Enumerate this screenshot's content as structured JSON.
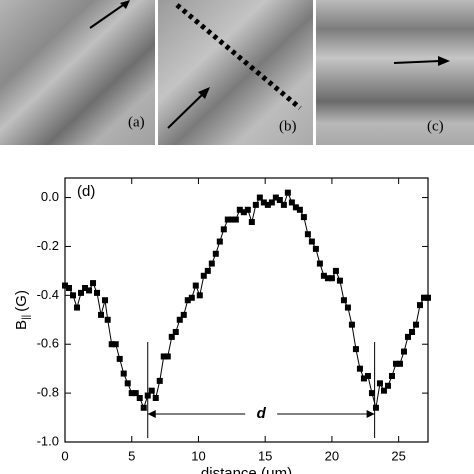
{
  "panels": [
    {
      "label": "(a)"
    },
    {
      "label": "(b)"
    },
    {
      "label": "(c)"
    }
  ],
  "chart_data": {
    "type": "line",
    "panel_label": "(d)",
    "annotation": "d",
    "x_label": "distance (μm)",
    "y_label": "B",
    "y_label_sub": "||",
    "y_label_unit": "(G)",
    "color": "#000000",
    "x": [
      0,
      0.3,
      0.6,
      0.9,
      1.2,
      1.5,
      1.8,
      2.1,
      2.4,
      2.7,
      3.0,
      3.2,
      3.5,
      3.8,
      4.1,
      4.4,
      4.7,
      5.0,
      5.3,
      5.6,
      5.9,
      6.2,
      6.5,
      6.8,
      7.1,
      7.4,
      7.7,
      8.0,
      8.3,
      8.6,
      8.9,
      9.2,
      9.5,
      9.8,
      10.1,
      10.4,
      10.7,
      11.0,
      11.3,
      11.6,
      11.9,
      12.2,
      12.5,
      12.8,
      13.1,
      13.4,
      13.7,
      14.0,
      14.3,
      14.6,
      14.9,
      15.2,
      15.5,
      15.8,
      16.1,
      16.4,
      16.7,
      17.0,
      17.3,
      17.6,
      17.9,
      18.2,
      18.5,
      18.8,
      19.1,
      19.4,
      19.7,
      20.0,
      20.3,
      20.6,
      20.9,
      21.2,
      21.5,
      21.8,
      22.1,
      22.4,
      22.7,
      23.0,
      23.3,
      23.6,
      23.9,
      24.2,
      24.5,
      24.8,
      25.1,
      25.4,
      25.7,
      26.0,
      26.3,
      26.6,
      26.9,
      27.2
    ],
    "values": [
      -0.36,
      -0.37,
      -0.4,
      -0.45,
      -0.39,
      -0.37,
      -0.38,
      -0.35,
      -0.39,
      -0.48,
      -0.42,
      -0.5,
      -0.6,
      -0.6,
      -0.66,
      -0.72,
      -0.76,
      -0.8,
      -0.8,
      -0.82,
      -0.86,
      -0.81,
      -0.79,
      -0.82,
      -0.75,
      -0.65,
      -0.65,
      -0.57,
      -0.55,
      -0.5,
      -0.48,
      -0.42,
      -0.41,
      -0.36,
      -0.4,
      -0.32,
      -0.3,
      -0.27,
      -0.23,
      -0.18,
      -0.13,
      -0.09,
      -0.09,
      -0.09,
      -0.05,
      -0.06,
      -0.05,
      -0.1,
      -0.03,
      0.0,
      -0.02,
      -0.03,
      -0.02,
      0.0,
      -0.01,
      -0.03,
      0.02,
      -0.02,
      -0.04,
      -0.05,
      -0.08,
      -0.15,
      -0.18,
      -0.21,
      -0.27,
      -0.32,
      -0.33,
      -0.33,
      -0.3,
      -0.34,
      -0.42,
      -0.45,
      -0.52,
      -0.62,
      -0.7,
      -0.74,
      -0.73,
      -0.8,
      -0.86,
      -0.76,
      -0.79,
      -0.77,
      -0.73,
      -0.68,
      -0.68,
      -0.63,
      -0.57,
      -0.55,
      -0.52,
      -0.44,
      -0.41,
      -0.41
    ],
    "markers": [
      6.2,
      23.2
    ],
    "xlim": [
      0,
      27.2
    ],
    "ylim": [
      -1.0,
      0.08
    ],
    "xticks": [
      0,
      5,
      10,
      15,
      20,
      25
    ],
    "yticks": [
      {
        "value": 0,
        "label": "0.0"
      },
      {
        "value": -0.2,
        "label": "-0.2"
      },
      {
        "value": -0.4,
        "label": "-0.4"
      },
      {
        "value": -0.6,
        "label": "-0.6"
      },
      {
        "value": -0.8,
        "label": "-0.8"
      },
      {
        "value": -1.0,
        "label": "-1.0"
      }
    ]
  }
}
